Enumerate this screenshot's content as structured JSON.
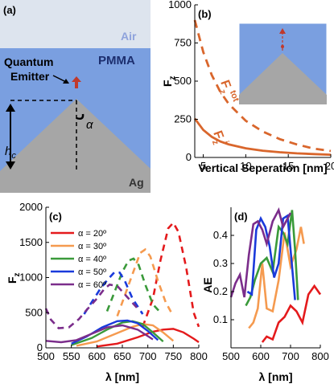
{
  "panel_a": {
    "label": "(a)",
    "air": "Air",
    "pmma": "PMMA",
    "emitter_line1": "Quantum",
    "emitter_line2": "Emitter",
    "alpha": "α",
    "hc_main": "h",
    "hc_sub": "c",
    "ag": "Ag",
    "colors": {
      "air": "#dde4ee",
      "pmma": "#7a9fe0",
      "ag": "#a6a6a6",
      "emitter": "#c0392b"
    }
  },
  "chart_data": [
    {
      "id": "b",
      "panel_label": "(b)",
      "type": "line",
      "xlabel": "Vertical Seperation [nm]",
      "ylabel_main": "F",
      "ylabel_sub": "z",
      "xlim": [
        4,
        20
      ],
      "ylim": [
        0,
        1000
      ],
      "xticks": [
        5,
        10,
        15,
        20
      ],
      "yticks": [
        0,
        250,
        500,
        750,
        1000
      ],
      "series": [
        {
          "label_main": "F",
          "label_sub": "z",
          "label_sup": "tot",
          "style": "dashed",
          "color": "#d9662c",
          "x": [
            4,
            5,
            6,
            7,
            8,
            10,
            12,
            14,
            16,
            18,
            20
          ],
          "y": [
            900,
            690,
            540,
            430,
            350,
            240,
            170,
            120,
            85,
            58,
            42
          ]
        },
        {
          "label_main": "F",
          "label_sub": "z",
          "label_sup": "i",
          "style": "solid",
          "color": "#d9662c",
          "x": [
            4,
            5,
            6,
            7,
            8,
            10,
            12,
            14,
            16,
            18,
            20
          ],
          "y": [
            255,
            180,
            135,
            105,
            85,
            60,
            44,
            34,
            27,
            22,
            18
          ]
        }
      ]
    },
    {
      "id": "c",
      "panel_label": "(c)",
      "type": "line",
      "xlabel": "λ [nm]",
      "ylabel_main": "F",
      "ylabel_sub": "z",
      "xlim": [
        500,
        800
      ],
      "ylim": [
        0,
        2000
      ],
      "xticks": [
        500,
        550,
        600,
        650,
        700,
        750,
        800
      ],
      "yticks": [
        0,
        500,
        1000,
        1500,
        2000
      ],
      "series": [
        {
          "name": "α = 20º",
          "color": "#e41a1c",
          "solid": {
            "x": [
              600,
              640,
              680,
              710,
              730,
              750,
              770,
              790,
              800
            ],
            "y": [
              20,
              60,
              150,
              230,
              260,
              270,
              220,
              130,
              80
            ]
          },
          "dashed": {
            "x": [
              690,
              710,
              725,
              740,
              750,
              760,
              775,
              790,
              800
            ],
            "y": [
              300,
              700,
              1250,
              1700,
              1780,
              1650,
              1150,
              500,
              300
            ]
          }
        },
        {
          "name": "α = 30º",
          "color": "#f59a4f",
          "solid": {
            "x": [
              560,
              600,
              640,
              670,
              690,
              710,
              730,
              750
            ],
            "y": [
              30,
              90,
              210,
              300,
              340,
              320,
              220,
              100
            ]
          },
          "dashed": {
            "x": [
              640,
              655,
              670,
              685,
              695,
              705,
              720,
              735,
              750
            ],
            "y": [
              450,
              750,
              1050,
              1350,
              1400,
              1300,
              950,
              650,
              450
            ]
          }
        },
        {
          "name": "α = 40º",
          "color": "#3a9a3a",
          "solid": {
            "x": [
              550,
              590,
              620,
              650,
              670,
              690,
              710,
              730
            ],
            "y": [
              40,
              140,
              260,
              360,
              380,
              340,
              220,
              90
            ]
          },
          "dashed": {
            "x": [
              620,
              635,
              650,
              662,
              672,
              682,
              695,
              710,
              725
            ],
            "y": [
              520,
              800,
              1080,
              1240,
              1270,
              1180,
              900,
              620,
              500
            ]
          }
        },
        {
          "name": "α = 50º",
          "color": "#1a3adb",
          "solid": {
            "x": [
              550,
              580,
              610,
              640,
              660,
              680,
              700,
              720
            ],
            "y": [
              60,
              160,
              290,
              380,
              390,
              350,
              240,
              110
            ]
          },
          "dashed": {
            "x": [
              575,
              590,
              605,
              620,
              635,
              645,
              655,
              670,
              690
            ],
            "y": [
              480,
              650,
              820,
              960,
              1080,
              1070,
              950,
              700,
              480
            ]
          }
        },
        {
          "name": "α = 60º",
          "color": "#7b2d8b",
          "solid": {
            "x": [
              500,
              530,
              560,
              590,
              620,
              650,
              680,
              710
            ],
            "y": [
              100,
              80,
              110,
              200,
              290,
              320,
              260,
              120
            ]
          },
          "dashed": {
            "x": [
              500,
              510,
              525,
              545,
              565,
              580,
              600,
              615,
              625,
              640,
              660,
              680
            ],
            "y": [
              560,
              400,
              280,
              290,
              410,
              540,
              700,
              840,
              900,
              880,
              720,
              560
            ]
          }
        }
      ]
    },
    {
      "id": "d",
      "panel_label": "(d)",
      "type": "line",
      "xlabel": "λ [nm]",
      "ylabel": "AE",
      "xlim": [
        500,
        800
      ],
      "ylim": [
        0,
        0.5
      ],
      "xticks": [
        500,
        600,
        700,
        800
      ],
      "yticks": [
        0.1,
        0.2,
        0.3,
        0.4
      ],
      "series": [
        {
          "color": "#e41a1c",
          "x": [
            605,
            620,
            640,
            660,
            680,
            700,
            720,
            740,
            760,
            780,
            800
          ],
          "y": [
            0.02,
            0.04,
            0.03,
            0.09,
            0.11,
            0.15,
            0.13,
            0.09,
            0.19,
            0.22,
            0.19
          ]
        },
        {
          "color": "#f59a4f",
          "x": [
            560,
            575,
            590,
            605,
            620,
            640,
            660,
            680,
            700,
            720,
            735,
            745
          ],
          "y": [
            0.07,
            0.09,
            0.14,
            0.3,
            0.14,
            0.13,
            0.24,
            0.41,
            0.29,
            0.35,
            0.43,
            0.37
          ]
        },
        {
          "color": "#3a9a3a",
          "x": [
            550,
            565,
            580,
            600,
            620,
            640,
            660,
            675,
            690,
            705,
            715,
            725
          ],
          "y": [
            0.15,
            0.18,
            0.24,
            0.3,
            0.32,
            0.27,
            0.43,
            0.41,
            0.37,
            0.49,
            0.35,
            0.17
          ]
        },
        {
          "color": "#1a3adb",
          "x": [
            555,
            570,
            585,
            600,
            615,
            630,
            645,
            660,
            675,
            690,
            700,
            715
          ],
          "y": [
            0.2,
            0.19,
            0.42,
            0.46,
            0.43,
            0.36,
            0.25,
            0.3,
            0.46,
            0.47,
            0.35,
            0.17
          ]
        },
        {
          "color": "#7b2d8b",
          "x": [
            500,
            515,
            530,
            545,
            560,
            575,
            590,
            605,
            620,
            640,
            660,
            675,
            690,
            700
          ],
          "y": [
            0.18,
            0.23,
            0.26,
            0.18,
            0.33,
            0.44,
            0.45,
            0.42,
            0.37,
            0.45,
            0.49,
            0.43,
            0.46,
            0.48
          ]
        }
      ]
    }
  ]
}
